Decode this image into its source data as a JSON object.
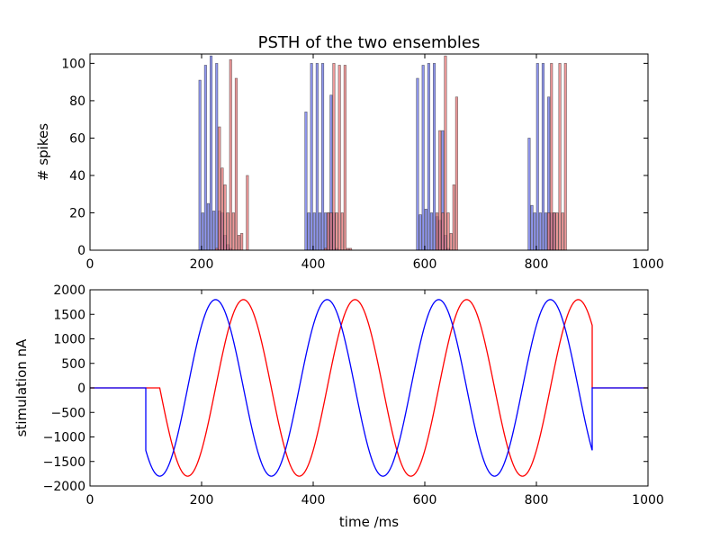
{
  "chart_data": [
    {
      "type": "bar",
      "title": "PSTH of the two ensembles",
      "xlabel": "",
      "ylabel": "# spikes",
      "xlim": [
        0,
        1000
      ],
      "ylim": [
        0,
        105
      ],
      "xticks": [
        "0",
        "200",
        "400",
        "600",
        "800",
        "1000"
      ],
      "yticks": [
        "0",
        "20",
        "40",
        "60",
        "80",
        "100"
      ],
      "bin_width": 5,
      "series": [
        {
          "color": "#6b74e8",
          "bars": [
            {
              "x": 195,
              "y": 91
            },
            {
              "x": 200,
              "y": 20
            },
            {
              "x": 205,
              "y": 99
            },
            {
              "x": 210,
              "y": 25
            },
            {
              "x": 215,
              "y": 104
            },
            {
              "x": 220,
              "y": 21
            },
            {
              "x": 225,
              "y": 100
            },
            {
              "x": 230,
              "y": 21
            },
            {
              "x": 235,
              "y": 20
            },
            {
              "x": 240,
              "y": 8
            },
            {
              "x": 245,
              "y": 3
            },
            {
              "x": 250,
              "y": 1
            },
            {
              "x": 385,
              "y": 74
            },
            {
              "x": 390,
              "y": 20
            },
            {
              "x": 395,
              "y": 100
            },
            {
              "x": 400,
              "y": 20
            },
            {
              "x": 405,
              "y": 100
            },
            {
              "x": 410,
              "y": 20
            },
            {
              "x": 415,
              "y": 100
            },
            {
              "x": 420,
              "y": 20
            },
            {
              "x": 425,
              "y": 20
            },
            {
              "x": 430,
              "y": 83
            },
            {
              "x": 435,
              "y": 20
            },
            {
              "x": 440,
              "y": 1
            },
            {
              "x": 585,
              "y": 92
            },
            {
              "x": 590,
              "y": 19
            },
            {
              "x": 595,
              "y": 99
            },
            {
              "x": 600,
              "y": 22
            },
            {
              "x": 605,
              "y": 100
            },
            {
              "x": 610,
              "y": 20
            },
            {
              "x": 615,
              "y": 100
            },
            {
              "x": 620,
              "y": 18
            },
            {
              "x": 625,
              "y": 16
            },
            {
              "x": 630,
              "y": 64
            },
            {
              "x": 635,
              "y": 8
            },
            {
              "x": 640,
              "y": 1
            },
            {
              "x": 785,
              "y": 60
            },
            {
              "x": 790,
              "y": 24
            },
            {
              "x": 795,
              "y": 20
            },
            {
              "x": 800,
              "y": 100
            },
            {
              "x": 805,
              "y": 20
            },
            {
              "x": 810,
              "y": 100
            },
            {
              "x": 815,
              "y": 20
            },
            {
              "x": 820,
              "y": 82
            },
            {
              "x": 825,
              "y": 20
            },
            {
              "x": 830,
              "y": 20
            }
          ]
        },
        {
          "color": "#e8787a",
          "bars": [
            {
              "x": 225,
              "y": 1
            },
            {
              "x": 230,
              "y": 66
            },
            {
              "x": 235,
              "y": 44
            },
            {
              "x": 240,
              "y": 35
            },
            {
              "x": 245,
              "y": 20
            },
            {
              "x": 250,
              "y": 102
            },
            {
              "x": 255,
              "y": 20
            },
            {
              "x": 260,
              "y": 92
            },
            {
              "x": 265,
              "y": 8
            },
            {
              "x": 270,
              "y": 9
            },
            {
              "x": 280,
              "y": 40
            },
            {
              "x": 420,
              "y": 1
            },
            {
              "x": 425,
              "y": 20
            },
            {
              "x": 430,
              "y": 20
            },
            {
              "x": 435,
              "y": 100
            },
            {
              "x": 440,
              "y": 20
            },
            {
              "x": 445,
              "y": 99
            },
            {
              "x": 450,
              "y": 20
            },
            {
              "x": 455,
              "y": 99
            },
            {
              "x": 460,
              "y": 1
            },
            {
              "x": 465,
              "y": 1
            },
            {
              "x": 620,
              "y": 20
            },
            {
              "x": 625,
              "y": 64
            },
            {
              "x": 630,
              "y": 20
            },
            {
              "x": 635,
              "y": 104
            },
            {
              "x": 640,
              "y": 20
            },
            {
              "x": 645,
              "y": 9
            },
            {
              "x": 650,
              "y": 35
            },
            {
              "x": 655,
              "y": 82
            },
            {
              "x": 820,
              "y": 20
            },
            {
              "x": 825,
              "y": 100
            },
            {
              "x": 830,
              "y": 20
            },
            {
              "x": 835,
              "y": 20
            },
            {
              "x": 840,
              "y": 100
            },
            {
              "x": 845,
              "y": 20
            },
            {
              "x": 850,
              "y": 100
            }
          ]
        }
      ]
    },
    {
      "type": "line",
      "title": "",
      "xlabel": "time /ms",
      "ylabel": "stimulation nA",
      "xlim": [
        0,
        1000
      ],
      "ylim": [
        -2000,
        2000
      ],
      "xticks": [
        "0",
        "200",
        "400",
        "600",
        "800",
        "1000"
      ],
      "yticks": [
        "2000",
        "1500",
        "1000",
        "500",
        "0",
        "−500",
        "−1000",
        "−1500",
        "−2000"
      ],
      "stimulus": {
        "onset_ms": 100,
        "offset_ms": 900,
        "amplitude_nA": 1800,
        "period_ms": 200
      },
      "series": [
        {
          "color": "#0000ff",
          "phase_lag_ms": 0
        },
        {
          "color": "#ff0000",
          "phase_lag_ms": 25
        }
      ]
    }
  ]
}
